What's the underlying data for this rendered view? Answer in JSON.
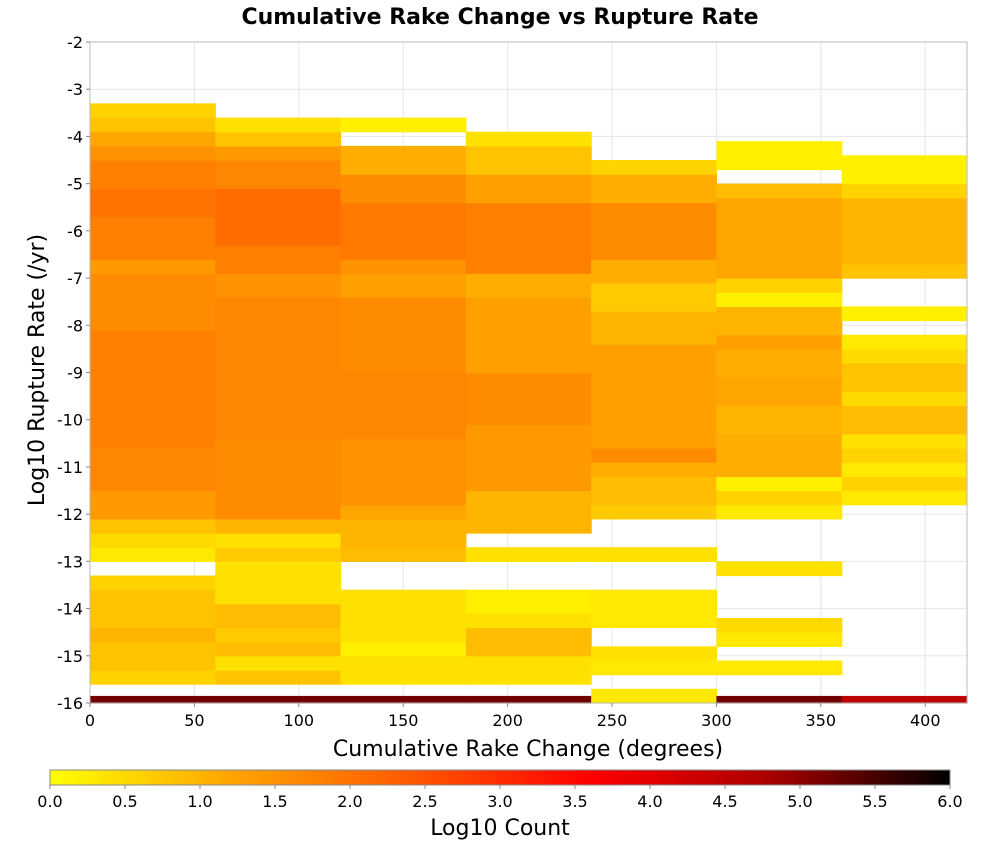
{
  "chart_data": {
    "type": "heatmap",
    "title": "Cumulative Rake Change vs Rupture Rate",
    "xlabel": "Cumulative Rake Change (degrees)",
    "ylabel": "Log10 Rupture Rate (/yr)",
    "xlim": [
      0,
      420
    ],
    "ylim": [
      -16,
      -2
    ],
    "x_ticks": [
      "0",
      "50",
      "100",
      "150",
      "200",
      "250",
      "300",
      "350",
      "400"
    ],
    "y_ticks": [
      "-2",
      "-3",
      "-4",
      "-5",
      "-6",
      "-7",
      "-8",
      "-9",
      "-10",
      "-11",
      "-12",
      "-13",
      "-14",
      "-15",
      "-16"
    ],
    "grid": true,
    "colorbar": {
      "label": "Log10 Count",
      "range": [
        0,
        6
      ],
      "ticks": [
        "0.0",
        "0.5",
        "1.0",
        "1.5",
        "2.0",
        "2.5",
        "3.0",
        "3.5",
        "4.0",
        "4.5",
        "5.0",
        "5.5",
        "6.0"
      ],
      "colors": [
        "#ffff00",
        "#ffa500",
        "#ff5a00",
        "#ff0000",
        "#aa0000",
        "#000000"
      ]
    },
    "x_bins": [
      0,
      60,
      120,
      180,
      240,
      300,
      360,
      420
    ],
    "y_bin_size": 0.29,
    "columns": [
      {
        "x0": 0,
        "x1": 60,
        "cells": [
          {
            "y0": -16.0,
            "y1": -15.85,
            "v": 5.2
          },
          {
            "y0": -15.6,
            "y1": -15.3,
            "v": 0.6
          },
          {
            "y0": -15.3,
            "y1": -14.7,
            "v": 0.8
          },
          {
            "y0": -14.7,
            "y1": -14.4,
            "v": 1.0
          },
          {
            "y0": -14.4,
            "y1": -13.6,
            "v": 0.8
          },
          {
            "y0": -13.6,
            "y1": -13.3,
            "v": 0.6
          },
          {
            "y0": -13.0,
            "y1": -12.7,
            "v": 0.3
          },
          {
            "y0": -12.7,
            "y1": -12.4,
            "v": 0.5
          },
          {
            "y0": -12.4,
            "y1": -12.1,
            "v": 0.8
          },
          {
            "y0": -12.1,
            "y1": -11.5,
            "v": 1.4
          },
          {
            "y0": -11.5,
            "y1": -10.6,
            "v": 1.7
          },
          {
            "y0": -10.6,
            "y1": -8.1,
            "v": 1.8
          },
          {
            "y0": -8.1,
            "y1": -6.9,
            "v": 1.6
          },
          {
            "y0": -6.9,
            "y1": -6.6,
            "v": 1.4
          },
          {
            "y0": -6.6,
            "y1": -5.7,
            "v": 1.8
          },
          {
            "y0": -5.7,
            "y1": -5.1,
            "v": 2.0
          },
          {
            "y0": -5.1,
            "y1": -4.5,
            "v": 1.8
          },
          {
            "y0": -4.5,
            "y1": -4.2,
            "v": 1.5
          },
          {
            "y0": -4.2,
            "y1": -3.9,
            "v": 1.2
          },
          {
            "y0": -3.9,
            "y1": -3.6,
            "v": 0.8
          },
          {
            "y0": -3.6,
            "y1": -3.3,
            "v": 0.6
          }
        ]
      },
      {
        "x0": 60,
        "x1": 120,
        "cells": [
          {
            "y0": -16.0,
            "y1": -15.85,
            "v": 5.2
          },
          {
            "y0": -15.6,
            "y1": -15.3,
            "v": 0.8
          },
          {
            "y0": -15.3,
            "y1": -15.0,
            "v": 0.4
          },
          {
            "y0": -15.0,
            "y1": -14.7,
            "v": 0.9
          },
          {
            "y0": -14.7,
            "y1": -14.4,
            "v": 0.7
          },
          {
            "y0": -14.4,
            "y1": -13.9,
            "v": 0.9
          },
          {
            "y0": -13.9,
            "y1": -13.0,
            "v": 0.4
          },
          {
            "y0": -13.0,
            "y1": -12.7,
            "v": 0.7
          },
          {
            "y0": -12.7,
            "y1": -12.4,
            "v": 0.4
          },
          {
            "y0": -12.4,
            "y1": -12.1,
            "v": 1.0
          },
          {
            "y0": -12.1,
            "y1": -10.4,
            "v": 1.6
          },
          {
            "y0": -10.4,
            "y1": -7.4,
            "v": 1.7
          },
          {
            "y0": -7.4,
            "y1": -6.9,
            "v": 1.5
          },
          {
            "y0": -6.9,
            "y1": -6.3,
            "v": 1.8
          },
          {
            "y0": -6.3,
            "y1": -5.1,
            "v": 2.1
          },
          {
            "y0": -5.1,
            "y1": -4.5,
            "v": 1.7
          },
          {
            "y0": -4.5,
            "y1": -4.2,
            "v": 1.4
          },
          {
            "y0": -4.2,
            "y1": -3.9,
            "v": 0.8
          },
          {
            "y0": -3.9,
            "y1": -3.6,
            "v": 0.4
          }
        ]
      },
      {
        "x0": 120,
        "x1": 180,
        "cells": [
          {
            "y0": -16.0,
            "y1": -15.85,
            "v": 5.2
          },
          {
            "y0": -15.6,
            "y1": -15.0,
            "v": 0.4
          },
          {
            "y0": -15.0,
            "y1": -14.7,
            "v": 0.2
          },
          {
            "y0": -14.7,
            "y1": -13.6,
            "v": 0.4
          },
          {
            "y0": -13.0,
            "y1": -12.7,
            "v": 0.9
          },
          {
            "y0": -12.7,
            "y1": -12.1,
            "v": 1.0
          },
          {
            "y0": -12.1,
            "y1": -11.8,
            "v": 1.2
          },
          {
            "y0": -11.8,
            "y1": -10.4,
            "v": 1.5
          },
          {
            "y0": -10.4,
            "y1": -9.0,
            "v": 1.7
          },
          {
            "y0": -9.0,
            "y1": -7.4,
            "v": 1.6
          },
          {
            "y0": -7.4,
            "y1": -6.9,
            "v": 1.3
          },
          {
            "y0": -6.9,
            "y1": -6.6,
            "v": 1.5
          },
          {
            "y0": -6.6,
            "y1": -5.4,
            "v": 1.9
          },
          {
            "y0": -5.4,
            "y1": -4.8,
            "v": 1.6
          },
          {
            "y0": -4.8,
            "y1": -4.2,
            "v": 1.1
          },
          {
            "y0": -3.9,
            "y1": -3.6,
            "v": 0.2
          }
        ]
      },
      {
        "x0": 180,
        "x1": 240,
        "cells": [
          {
            "y0": -16.0,
            "y1": -15.85,
            "v": 5.2
          },
          {
            "y0": -15.6,
            "y1": -15.0,
            "v": 0.4
          },
          {
            "y0": -15.0,
            "y1": -14.4,
            "v": 0.9
          },
          {
            "y0": -14.4,
            "y1": -14.1,
            "v": 0.4
          },
          {
            "y0": -14.1,
            "y1": -13.6,
            "v": 0.2
          },
          {
            "y0": -13.0,
            "y1": -12.7,
            "v": 0.4
          },
          {
            "y0": -12.4,
            "y1": -11.5,
            "v": 1.0
          },
          {
            "y0": -11.5,
            "y1": -10.1,
            "v": 1.4
          },
          {
            "y0": -10.1,
            "y1": -9.0,
            "v": 1.6
          },
          {
            "y0": -9.0,
            "y1": -7.4,
            "v": 1.3
          },
          {
            "y0": -7.4,
            "y1": -6.9,
            "v": 1.1
          },
          {
            "y0": -6.9,
            "y1": -5.4,
            "v": 1.8
          },
          {
            "y0": -5.4,
            "y1": -4.8,
            "v": 1.3
          },
          {
            "y0": -4.8,
            "y1": -4.2,
            "v": 0.8
          },
          {
            "y0": -4.2,
            "y1": -3.9,
            "v": 0.4
          }
        ]
      },
      {
        "x0": 240,
        "x1": 300,
        "cells": [
          {
            "y0": -16.0,
            "y1": -15.7,
            "v": 0.3
          },
          {
            "y0": -15.4,
            "y1": -15.1,
            "v": 0.3
          },
          {
            "y0": -15.1,
            "y1": -14.8,
            "v": 0.4
          },
          {
            "y0": -14.4,
            "y1": -13.6,
            "v": 0.3
          },
          {
            "y0": -13.0,
            "y1": -12.7,
            "v": 0.4
          },
          {
            "y0": -12.1,
            "y1": -11.8,
            "v": 0.7
          },
          {
            "y0": -11.8,
            "y1": -11.2,
            "v": 0.9
          },
          {
            "y0": -11.2,
            "y1": -10.9,
            "v": 1.1
          },
          {
            "y0": -10.9,
            "y1": -10.6,
            "v": 1.6
          },
          {
            "y0": -10.6,
            "y1": -8.4,
            "v": 1.3
          },
          {
            "y0": -8.4,
            "y1": -7.7,
            "v": 1.0
          },
          {
            "y0": -7.7,
            "y1": -7.1,
            "v": 0.7
          },
          {
            "y0": -7.1,
            "y1": -6.6,
            "v": 1.1
          },
          {
            "y0": -6.6,
            "y1": -5.4,
            "v": 1.6
          },
          {
            "y0": -5.4,
            "y1": -4.8,
            "v": 1.1
          },
          {
            "y0": -4.8,
            "y1": -4.5,
            "v": 0.6
          }
        ]
      },
      {
        "x0": 300,
        "x1": 360,
        "cells": [
          {
            "y0": -16.0,
            "y1": -15.85,
            "v": 5.2
          },
          {
            "y0": -15.4,
            "y1": -15.1,
            "v": 0.3
          },
          {
            "y0": -14.8,
            "y1": -14.5,
            "v": 0.3
          },
          {
            "y0": -14.5,
            "y1": -14.2,
            "v": 0.5
          },
          {
            "y0": -13.3,
            "y1": -13.0,
            "v": 0.4
          },
          {
            "y0": -12.1,
            "y1": -11.8,
            "v": 0.3
          },
          {
            "y0": -11.8,
            "y1": -11.5,
            "v": 0.6
          },
          {
            "y0": -11.5,
            "y1": -11.2,
            "v": 0.2
          },
          {
            "y0": -11.2,
            "y1": -10.3,
            "v": 1.1
          },
          {
            "y0": -10.3,
            "y1": -9.7,
            "v": 1.0
          },
          {
            "y0": -9.7,
            "y1": -9.1,
            "v": 1.2
          },
          {
            "y0": -9.1,
            "y1": -8.5,
            "v": 1.1
          },
          {
            "y0": -8.5,
            "y1": -8.2,
            "v": 1.3
          },
          {
            "y0": -8.2,
            "y1": -7.6,
            "v": 1.0
          },
          {
            "y0": -7.6,
            "y1": -7.3,
            "v": 0.2
          },
          {
            "y0": -7.3,
            "y1": -7.0,
            "v": 0.6
          },
          {
            "y0": -7.0,
            "y1": -5.3,
            "v": 1.2
          },
          {
            "y0": -5.3,
            "y1": -5.0,
            "v": 0.9
          },
          {
            "y0": -4.7,
            "y1": -4.1,
            "v": 0.2
          }
        ]
      },
      {
        "x0": 360,
        "x1": 420,
        "cells": [
          {
            "y0": -16.0,
            "y1": -15.85,
            "v": 4.5
          },
          {
            "y0": -11.8,
            "y1": -11.5,
            "v": 0.3
          },
          {
            "y0": -11.5,
            "y1": -11.2,
            "v": 0.6
          },
          {
            "y0": -11.2,
            "y1": -10.9,
            "v": 0.3
          },
          {
            "y0": -10.9,
            "y1": -10.6,
            "v": 0.6
          },
          {
            "y0": -10.6,
            "y1": -10.3,
            "v": 0.4
          },
          {
            "y0": -10.3,
            "y1": -9.7,
            "v": 0.9
          },
          {
            "y0": -9.7,
            "y1": -9.4,
            "v": 0.5
          },
          {
            "y0": -9.4,
            "y1": -8.8,
            "v": 0.8
          },
          {
            "y0": -8.8,
            "y1": -8.5,
            "v": 0.5
          },
          {
            "y0": -8.5,
            "y1": -8.2,
            "v": 0.3
          },
          {
            "y0": -7.9,
            "y1": -7.6,
            "v": 0.2
          },
          {
            "y0": -7.0,
            "y1": -6.7,
            "v": 0.8
          },
          {
            "y0": -6.7,
            "y1": -5.3,
            "v": 1.0
          },
          {
            "y0": -5.3,
            "y1": -5.0,
            "v": 0.6
          },
          {
            "y0": -5.0,
            "y1": -4.4,
            "v": 0.2
          }
        ]
      }
    ]
  }
}
